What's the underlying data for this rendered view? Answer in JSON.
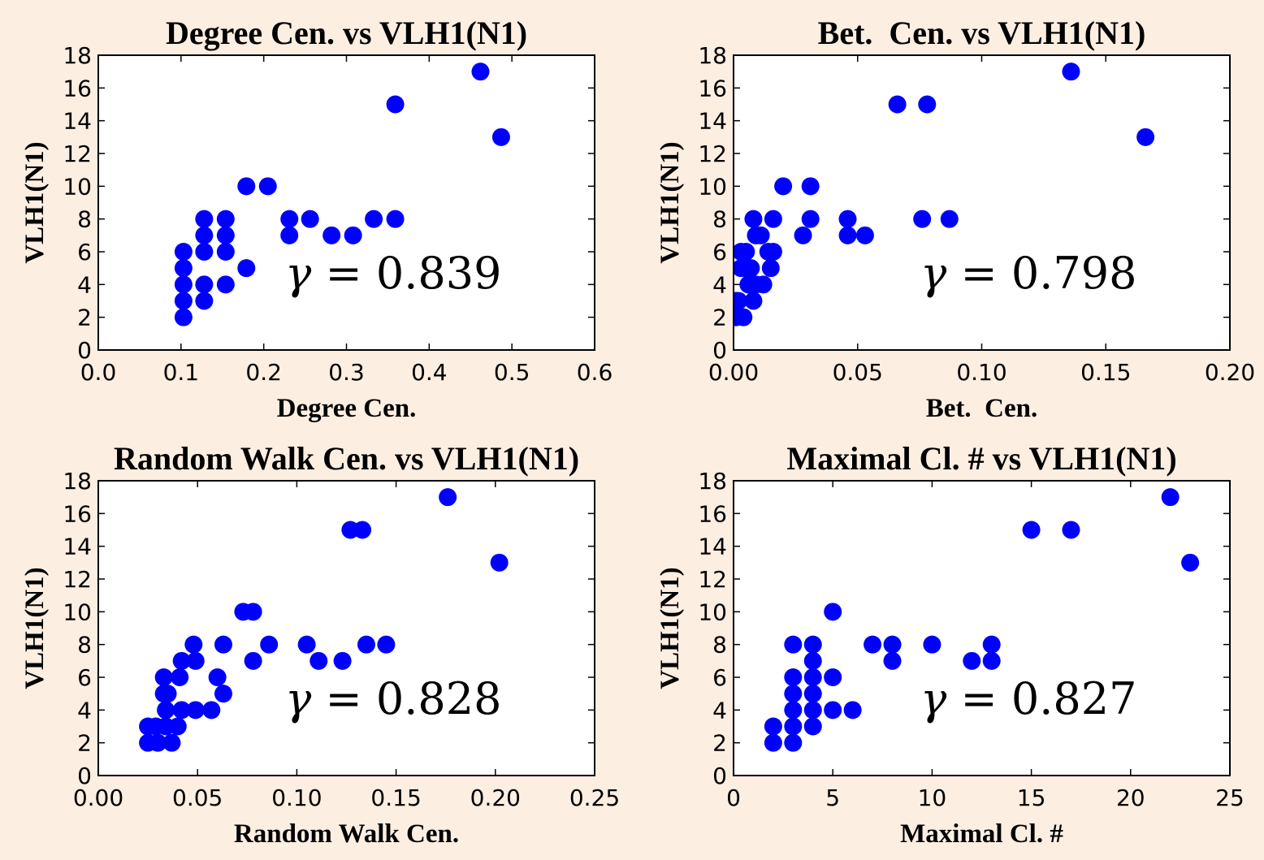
{
  "colors": {
    "background": "#fdeee2",
    "plot_bg": "#ffffff",
    "marker": "#0000ff",
    "axis": "#000000"
  },
  "chart_data": [
    {
      "type": "scatter",
      "title": "Degree Cen. vs VLH1(N1)",
      "xlabel": "Degree Cen.",
      "ylabel": "VLH1(N1)",
      "xlim": [
        0,
        0.6
      ],
      "ylim": [
        0,
        18
      ],
      "xticks": [
        "0.0",
        "0.1",
        "0.2",
        "0.3",
        "0.4",
        "0.5",
        "0.6"
      ],
      "xtick_values": [
        0,
        0.1,
        0.2,
        0.3,
        0.4,
        0.5,
        0.6
      ],
      "yticks": [
        "0",
        "2",
        "4",
        "6",
        "8",
        "10",
        "12",
        "14",
        "16",
        "18"
      ],
      "ytick_values": [
        0,
        2,
        4,
        6,
        8,
        10,
        12,
        14,
        16,
        18
      ],
      "annotation": {
        "symbol": "γ",
        "text": " = 0.839"
      },
      "points": [
        [
          0.103,
          6
        ],
        [
          0.103,
          5
        ],
        [
          0.103,
          4
        ],
        [
          0.103,
          3
        ],
        [
          0.103,
          2
        ],
        [
          0.128,
          8
        ],
        [
          0.128,
          7
        ],
        [
          0.128,
          6
        ],
        [
          0.128,
          4
        ],
        [
          0.128,
          3
        ],
        [
          0.154,
          8
        ],
        [
          0.154,
          7
        ],
        [
          0.154,
          6
        ],
        [
          0.154,
          4
        ],
        [
          0.179,
          10
        ],
        [
          0.179,
          5
        ],
        [
          0.205,
          10
        ],
        [
          0.231,
          8
        ],
        [
          0.231,
          7
        ],
        [
          0.256,
          8
        ],
        [
          0.282,
          7
        ],
        [
          0.308,
          7
        ],
        [
          0.333,
          8
        ],
        [
          0.359,
          8
        ],
        [
          0.359,
          15
        ],
        [
          0.462,
          17
        ],
        [
          0.487,
          13
        ]
      ]
    },
    {
      "type": "scatter",
      "title": "Bet.  Cen. vs VLH1(N1)",
      "xlabel": "Bet.  Cen.",
      "ylabel": "VLH1(N1)",
      "xlim": [
        0,
        0.2
      ],
      "ylim": [
        0,
        18
      ],
      "xticks": [
        "0.00",
        "0.05",
        "0.10",
        "0.15",
        "0.20"
      ],
      "xtick_values": [
        0,
        0.05,
        0.1,
        0.15,
        0.2
      ],
      "yticks": [
        "0",
        "2",
        "4",
        "6",
        "8",
        "10",
        "12",
        "14",
        "16",
        "18"
      ],
      "ytick_values": [
        0,
        2,
        4,
        6,
        8,
        10,
        12,
        14,
        16,
        18
      ],
      "annotation": {
        "symbol": "γ",
        "text": " = 0.798"
      },
      "points": [
        [
          0.001,
          3
        ],
        [
          0.001,
          2
        ],
        [
          0.002,
          3
        ],
        [
          0.003,
          6
        ],
        [
          0.003,
          5
        ],
        [
          0.004,
          2
        ],
        [
          0.005,
          6
        ],
        [
          0.005,
          5
        ],
        [
          0.006,
          4
        ],
        [
          0.007,
          5
        ],
        [
          0.008,
          3
        ],
        [
          0.009,
          4
        ],
        [
          0.008,
          8
        ],
        [
          0.009,
          7
        ],
        [
          0.011,
          7
        ],
        [
          0.012,
          4
        ],
        [
          0.014,
          6
        ],
        [
          0.015,
          5
        ],
        [
          0.016,
          6
        ],
        [
          0.016,
          8
        ],
        [
          0.02,
          10
        ],
        [
          0.028,
          7
        ],
        [
          0.031,
          8
        ],
        [
          0.031,
          10
        ],
        [
          0.046,
          8
        ],
        [
          0.046,
          7
        ],
        [
          0.053,
          7
        ],
        [
          0.066,
          15
        ],
        [
          0.078,
          15
        ],
        [
          0.076,
          8
        ],
        [
          0.087,
          8
        ],
        [
          0.136,
          17
        ],
        [
          0.166,
          13
        ]
      ]
    },
    {
      "type": "scatter",
      "title": "Random Walk Cen. vs VLH1(N1)",
      "xlabel": "Random Walk Cen.",
      "ylabel": "VLH1(N1)",
      "xlim": [
        0,
        0.25
      ],
      "ylim": [
        0,
        18
      ],
      "xticks": [
        "0.00",
        "0.05",
        "0.10",
        "0.15",
        "0.20",
        "0.25"
      ],
      "xtick_values": [
        0,
        0.05,
        0.1,
        0.15,
        0.2,
        0.25
      ],
      "yticks": [
        "0",
        "2",
        "4",
        "6",
        "8",
        "10",
        "12",
        "14",
        "16",
        "18"
      ],
      "ytick_values": [
        0,
        2,
        4,
        6,
        8,
        10,
        12,
        14,
        16,
        18
      ],
      "annotation": {
        "symbol": "γ",
        "text": " = 0.828"
      },
      "points": [
        [
          0.025,
          3
        ],
        [
          0.025,
          2
        ],
        [
          0.029,
          3
        ],
        [
          0.03,
          2
        ],
        [
          0.033,
          6
        ],
        [
          0.033,
          5
        ],
        [
          0.034,
          4
        ],
        [
          0.034,
          3
        ],
        [
          0.035,
          5
        ],
        [
          0.037,
          2
        ],
        [
          0.04,
          3
        ],
        [
          0.041,
          6
        ],
        [
          0.042,
          7
        ],
        [
          0.042,
          4
        ],
        [
          0.048,
          8
        ],
        [
          0.049,
          7
        ],
        [
          0.049,
          4
        ],
        [
          0.057,
          4
        ],
        [
          0.06,
          6
        ],
        [
          0.063,
          5
        ],
        [
          0.063,
          8
        ],
        [
          0.073,
          10
        ],
        [
          0.078,
          10
        ],
        [
          0.078,
          7
        ],
        [
          0.086,
          8
        ],
        [
          0.105,
          8
        ],
        [
          0.111,
          7
        ],
        [
          0.123,
          7
        ],
        [
          0.127,
          15
        ],
        [
          0.133,
          15
        ],
        [
          0.135,
          8
        ],
        [
          0.145,
          8
        ],
        [
          0.176,
          17
        ],
        [
          0.202,
          13
        ]
      ]
    },
    {
      "type": "scatter",
      "title": "Maximal Cl. # vs VLH1(N1)",
      "xlabel": "Maximal Cl. #",
      "ylabel": "VLH1(N1)",
      "xlim": [
        0,
        25
      ],
      "ylim": [
        0,
        18
      ],
      "xticks": [
        "0",
        "5",
        "10",
        "15",
        "20",
        "25"
      ],
      "xtick_values": [
        0,
        5,
        10,
        15,
        20,
        25
      ],
      "yticks": [
        "0",
        "2",
        "4",
        "6",
        "8",
        "10",
        "12",
        "14",
        "16",
        "18"
      ],
      "ytick_values": [
        0,
        2,
        4,
        6,
        8,
        10,
        12,
        14,
        16,
        18
      ],
      "annotation": {
        "symbol": "γ",
        "text": " = 0.827"
      },
      "points": [
        [
          2,
          3
        ],
        [
          2,
          2
        ],
        [
          3,
          8
        ],
        [
          3,
          6
        ],
        [
          3,
          5
        ],
        [
          3,
          4
        ],
        [
          3,
          3
        ],
        [
          3,
          2
        ],
        [
          4,
          8
        ],
        [
          4,
          7
        ],
        [
          4,
          6
        ],
        [
          4,
          5
        ],
        [
          4,
          4
        ],
        [
          4,
          3
        ],
        [
          5,
          10
        ],
        [
          5,
          6
        ],
        [
          5,
          4
        ],
        [
          6,
          4
        ],
        [
          7,
          8
        ],
        [
          8,
          8
        ],
        [
          8,
          7
        ],
        [
          10,
          8
        ],
        [
          12,
          7
        ],
        [
          13,
          8
        ],
        [
          13,
          7
        ],
        [
          15,
          15
        ],
        [
          17,
          15
        ],
        [
          22,
          17
        ],
        [
          23,
          13
        ]
      ]
    }
  ]
}
